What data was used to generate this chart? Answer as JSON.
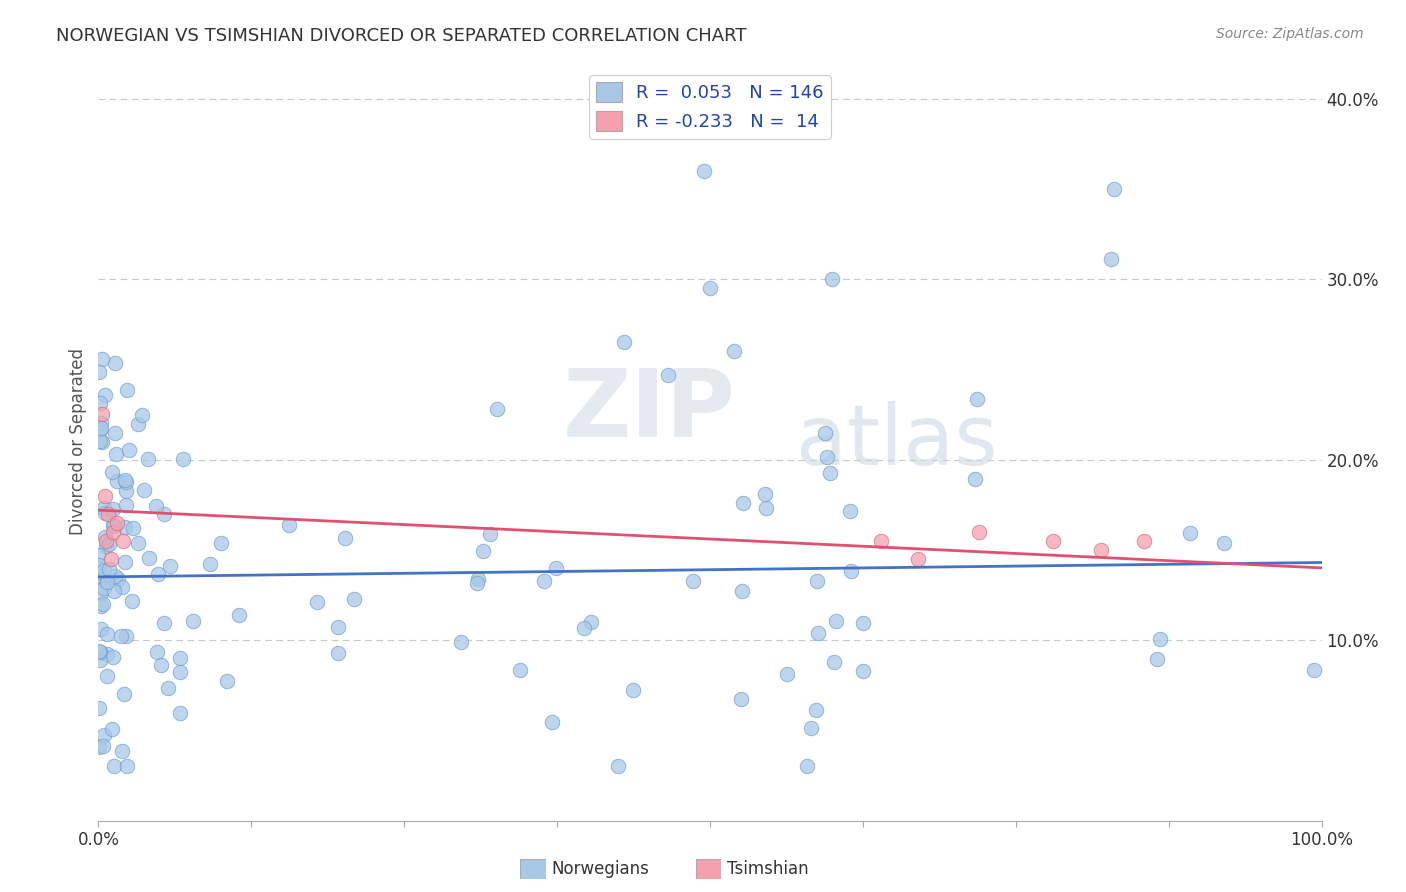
{
  "title": "NORWEGIAN VS TSIMSHIAN DIVORCED OR SEPARATED CORRELATION CHART",
  "source": "Source: ZipAtlas.com",
  "ylabel": "Divorced or Separated",
  "xlim": [
    0.0,
    1.0
  ],
  "ylim": [
    0.0,
    0.42
  ],
  "yticks": [
    0.1,
    0.2,
    0.3,
    0.4
  ],
  "ytick_labels": [
    "10.0%",
    "20.0%",
    "30.0%",
    "40.0%"
  ],
  "norwegian_R": 0.053,
  "norwegian_N": 146,
  "tsimshian_R": -0.233,
  "tsimshian_N": 14,
  "norwegian_color": "#a8c8e8",
  "tsimshian_color": "#f4a0b0",
  "norwegian_line_color": "#4472c4",
  "tsimshian_line_color": "#e05070",
  "watermark_zip": "ZIP",
  "watermark_atlas": "atlas",
  "background_color": "#ffffff",
  "grid_color": "#c8c8c8",
  "nor_intercept": 0.135,
  "nor_slope": 0.008,
  "tsi_intercept": 0.172,
  "tsi_slope": -0.032
}
